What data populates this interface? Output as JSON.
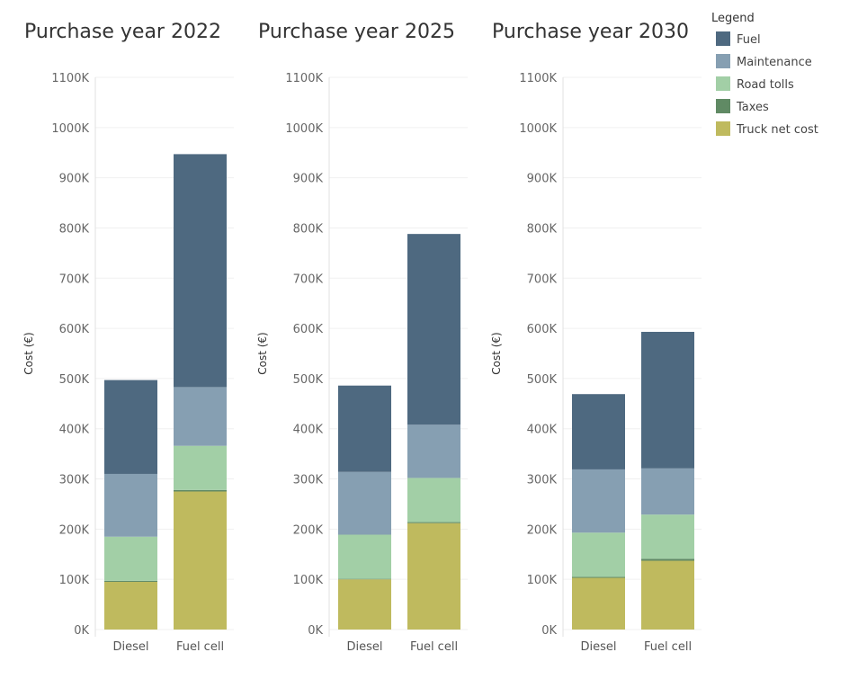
{
  "chart_data": {
    "type": "bar",
    "stacked": true,
    "ylabel": "Cost (€)",
    "ylim": [
      0,
      1100000
    ],
    "y_ticks": [
      0,
      100000,
      200000,
      300000,
      400000,
      500000,
      600000,
      700000,
      800000,
      900000,
      1000000,
      1100000
    ],
    "y_tick_labels": [
      "0K",
      "100K",
      "200K",
      "300K",
      "400K",
      "500K",
      "600K",
      "700K",
      "800K",
      "900K",
      "1000K",
      "1100K"
    ],
    "categories": [
      "Diesel",
      "Fuel cell"
    ],
    "legend": {
      "title": "Legend",
      "position": "top-right",
      "items": [
        {
          "name": "Fuel",
          "color": "#4e6980"
        },
        {
          "name": "Maintenance",
          "color": "#869fb2"
        },
        {
          "name": "Road tolls",
          "color": "#a2cfa6"
        },
        {
          "name": "Taxes",
          "color": "#608a64"
        },
        {
          "name": "Truck net cost",
          "color": "#bfba5e"
        }
      ]
    },
    "stack_order": [
      "Truck net cost",
      "Taxes",
      "Road tolls",
      "Maintenance",
      "Fuel"
    ],
    "panels": [
      {
        "title": "Purchase year 2022",
        "series": [
          {
            "name": "Truck net cost",
            "values": [
              95000,
              275000
            ]
          },
          {
            "name": "Taxes",
            "values": [
              2000,
              3000
            ]
          },
          {
            "name": "Road tolls",
            "values": [
              88000,
              88000
            ]
          },
          {
            "name": "Maintenance",
            "values": [
              125000,
              117000
            ]
          },
          {
            "name": "Fuel",
            "values": [
              187000,
              464000
            ]
          }
        ]
      },
      {
        "title": "Purchase year 2025",
        "series": [
          {
            "name": "Truck net cost",
            "values": [
              100000,
              212000
            ]
          },
          {
            "name": "Taxes",
            "values": [
              1000,
              2000
            ]
          },
          {
            "name": "Road tolls",
            "values": [
              88000,
              88000
            ]
          },
          {
            "name": "Maintenance",
            "values": [
              125000,
              106000
            ]
          },
          {
            "name": "Fuel",
            "values": [
              172000,
              380000
            ]
          }
        ]
      },
      {
        "title": "Purchase year 2030",
        "series": [
          {
            "name": "Truck net cost",
            "values": [
              103000,
              137000
            ]
          },
          {
            "name": "Taxes",
            "values": [
              2000,
              4000
            ]
          },
          {
            "name": "Road tolls",
            "values": [
              88000,
              88000
            ]
          },
          {
            "name": "Maintenance",
            "values": [
              126000,
              92000
            ]
          },
          {
            "name": "Fuel",
            "values": [
              150000,
              272000
            ]
          }
        ]
      }
    ]
  }
}
